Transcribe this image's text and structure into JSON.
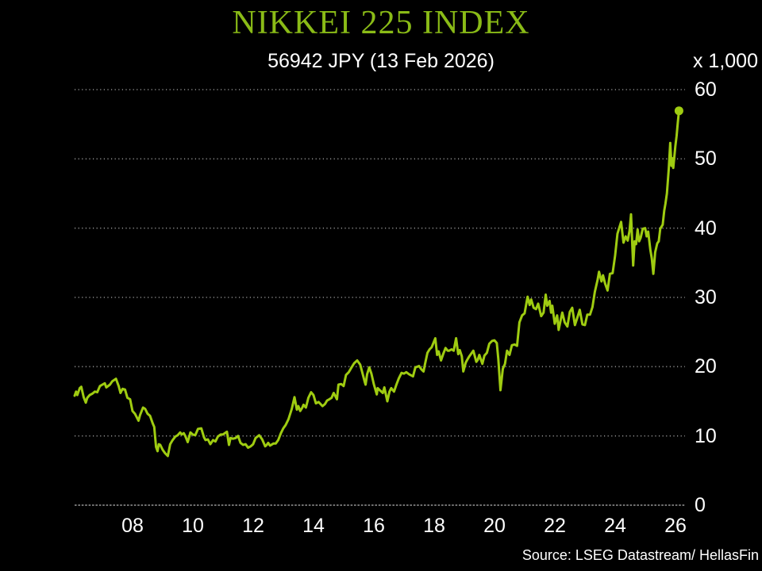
{
  "header": {
    "title": "NIKKEI 225 INDEX",
    "subtitle": "56942 JPY (13 Feb 2026)"
  },
  "footer": {
    "source_note": "Source: LSEG Datastream/ HellasFin"
  },
  "colors": {
    "background": "#000000",
    "title_green": "#8ABB17",
    "line_green": "#9FCC11",
    "gridline_gray": "#8A8A8A",
    "baseline_gray": "#959595",
    "text_white": "#FFFFFF"
  },
  "chart_data": {
    "type": "line",
    "title": "NIKKEI 225 INDEX",
    "annotation": "56942 JPY (13 Feb 2026)",
    "unit_label": "x 1,000",
    "xlabel": "",
    "ylabel": "",
    "legend_position": "none",
    "grid": "horizontal-dotted",
    "ylim": [
      0,
      60
    ],
    "yticks": [
      0,
      10,
      20,
      30,
      40,
      50,
      60
    ],
    "ytick_labels": [
      "0",
      "10",
      "20",
      "30",
      "40",
      "50",
      "60"
    ],
    "xlim": [
      2006.08,
      2026.32
    ],
    "xtick_years": [
      2008,
      2010,
      2012,
      2014,
      2016,
      2018,
      2020,
      2022,
      2024,
      2026
    ],
    "xtick_labels": [
      "08",
      "10",
      "12",
      "14",
      "16",
      "18",
      "20",
      "22",
      "24",
      "26"
    ],
    "values_unit": "JPY thousands",
    "last_point": {
      "date": "13 Feb 2026",
      "value_jpy": 56942
    },
    "series": [
      {
        "name": "Nikkei 225 Index",
        "points": [
          [
            2006.08,
            15.8
          ],
          [
            2006.13,
            16.4
          ],
          [
            2006.17,
            15.9
          ],
          [
            2006.25,
            16.9
          ],
          [
            2006.3,
            17.1
          ],
          [
            2006.38,
            15.6
          ],
          [
            2006.45,
            14.8
          ],
          [
            2006.5,
            15.5
          ],
          [
            2006.58,
            15.9
          ],
          [
            2006.67,
            16.1
          ],
          [
            2006.75,
            16.4
          ],
          [
            2006.83,
            16.3
          ],
          [
            2006.92,
            17.2
          ],
          [
            2007.0,
            17.4
          ],
          [
            2007.08,
            17.6
          ],
          [
            2007.13,
            17.0
          ],
          [
            2007.25,
            17.4
          ],
          [
            2007.33,
            17.9
          ],
          [
            2007.45,
            18.25
          ],
          [
            2007.54,
            17.2
          ],
          [
            2007.6,
            16.2
          ],
          [
            2007.67,
            16.8
          ],
          [
            2007.75,
            16.7
          ],
          [
            2007.83,
            15.5
          ],
          [
            2007.92,
            15.3
          ],
          [
            2008.0,
            13.6
          ],
          [
            2008.08,
            13.2
          ],
          [
            2008.2,
            12.2
          ],
          [
            2008.25,
            13.0
          ],
          [
            2008.35,
            14.1
          ],
          [
            2008.42,
            13.9
          ],
          [
            2008.5,
            13.2
          ],
          [
            2008.58,
            12.9
          ],
          [
            2008.67,
            11.8
          ],
          [
            2008.72,
            11.3
          ],
          [
            2008.78,
            8.4
          ],
          [
            2008.83,
            7.8
          ],
          [
            2008.87,
            8.8
          ],
          [
            2008.92,
            8.7
          ],
          [
            2009.0,
            8.0
          ],
          [
            2009.08,
            7.5
          ],
          [
            2009.17,
            7.1
          ],
          [
            2009.25,
            8.8
          ],
          [
            2009.33,
            9.4
          ],
          [
            2009.42,
            9.9
          ],
          [
            2009.5,
            10.1
          ],
          [
            2009.58,
            10.5
          ],
          [
            2009.63,
            10.2
          ],
          [
            2009.7,
            10.4
          ],
          [
            2009.75,
            10.0
          ],
          [
            2009.83,
            9.1
          ],
          [
            2009.92,
            10.5
          ],
          [
            2010.0,
            10.2
          ],
          [
            2010.08,
            10.1
          ],
          [
            2010.17,
            11.0
          ],
          [
            2010.28,
            11.1
          ],
          [
            2010.37,
            9.8
          ],
          [
            2010.42,
            9.4
          ],
          [
            2010.5,
            9.5
          ],
          [
            2010.58,
            8.8
          ],
          [
            2010.67,
            9.4
          ],
          [
            2010.75,
            9.2
          ],
          [
            2010.83,
            9.9
          ],
          [
            2010.92,
            10.2
          ],
          [
            2011.0,
            10.2
          ],
          [
            2011.13,
            10.6
          ],
          [
            2011.2,
            8.7
          ],
          [
            2011.25,
            9.7
          ],
          [
            2011.33,
            9.6
          ],
          [
            2011.42,
            9.7
          ],
          [
            2011.5,
            10.0
          ],
          [
            2011.58,
            9.0
          ],
          [
            2011.67,
            8.7
          ],
          [
            2011.75,
            8.8
          ],
          [
            2011.83,
            8.3
          ],
          [
            2011.92,
            8.5
          ],
          [
            2012.0,
            8.8
          ],
          [
            2012.08,
            9.7
          ],
          [
            2012.2,
            10.1
          ],
          [
            2012.3,
            9.5
          ],
          [
            2012.4,
            8.5
          ],
          [
            2012.45,
            8.7
          ],
          [
            2012.5,
            9.0
          ],
          [
            2012.56,
            8.6
          ],
          [
            2012.67,
            8.9
          ],
          [
            2012.75,
            8.9
          ],
          [
            2012.83,
            9.4
          ],
          [
            2012.92,
            10.4
          ],
          [
            2013.0,
            11.1
          ],
          [
            2013.08,
            11.6
          ],
          [
            2013.17,
            12.4
          ],
          [
            2013.28,
            13.9
          ],
          [
            2013.37,
            15.6
          ],
          [
            2013.45,
            13.8
          ],
          [
            2013.5,
            14.3
          ],
          [
            2013.56,
            13.6
          ],
          [
            2013.63,
            14.1
          ],
          [
            2013.67,
            14.5
          ],
          [
            2013.75,
            14.1
          ],
          [
            2013.83,
            15.5
          ],
          [
            2013.92,
            16.3
          ],
          [
            2014.0,
            15.9
          ],
          [
            2014.08,
            14.7
          ],
          [
            2014.17,
            14.9
          ],
          [
            2014.3,
            14.3
          ],
          [
            2014.38,
            14.6
          ],
          [
            2014.45,
            15.1
          ],
          [
            2014.53,
            15.3
          ],
          [
            2014.6,
            15.5
          ],
          [
            2014.67,
            16.2
          ],
          [
            2014.78,
            15.3
          ],
          [
            2014.83,
            17.4
          ],
          [
            2014.92,
            17.5
          ],
          [
            2015.0,
            17.2
          ],
          [
            2015.08,
            18.8
          ],
          [
            2015.17,
            19.2
          ],
          [
            2015.25,
            19.8
          ],
          [
            2015.35,
            20.5
          ],
          [
            2015.45,
            20.9
          ],
          [
            2015.55,
            20.3
          ],
          [
            2015.63,
            19.0
          ],
          [
            2015.7,
            17.8
          ],
          [
            2015.73,
            17.4
          ],
          [
            2015.78,
            18.9
          ],
          [
            2015.85,
            19.9
          ],
          [
            2015.92,
            19.0
          ],
          [
            2016.0,
            17.5
          ],
          [
            2016.1,
            16.0
          ],
          [
            2016.13,
            16.9
          ],
          [
            2016.2,
            16.6
          ],
          [
            2016.3,
            16.2
          ],
          [
            2016.35,
            17.0
          ],
          [
            2016.45,
            15.0
          ],
          [
            2016.52,
            16.4
          ],
          [
            2016.58,
            16.9
          ],
          [
            2016.67,
            16.4
          ],
          [
            2016.75,
            17.4
          ],
          [
            2016.83,
            18.3
          ],
          [
            2016.92,
            19.1
          ],
          [
            2017.0,
            19.0
          ],
          [
            2017.08,
            19.2
          ],
          [
            2017.17,
            18.9
          ],
          [
            2017.3,
            18.6
          ],
          [
            2017.38,
            19.9
          ],
          [
            2017.45,
            20.0
          ],
          [
            2017.5,
            20.1
          ],
          [
            2017.58,
            19.6
          ],
          [
            2017.65,
            19.3
          ],
          [
            2017.7,
            20.4
          ],
          [
            2017.78,
            22.0
          ],
          [
            2017.85,
            22.5
          ],
          [
            2017.92,
            22.8
          ],
          [
            2018.04,
            24.1
          ],
          [
            2018.1,
            21.7
          ],
          [
            2018.15,
            22.2
          ],
          [
            2018.23,
            20.9
          ],
          [
            2018.3,
            21.8
          ],
          [
            2018.38,
            22.7
          ],
          [
            2018.45,
            22.3
          ],
          [
            2018.5,
            22.3
          ],
          [
            2018.58,
            22.5
          ],
          [
            2018.65,
            22.3
          ],
          [
            2018.73,
            24.1
          ],
          [
            2018.8,
            21.8
          ],
          [
            2018.85,
            22.4
          ],
          [
            2018.92,
            21.5
          ],
          [
            2018.97,
            19.3
          ],
          [
            2019.05,
            20.6
          ],
          [
            2019.1,
            21.0
          ],
          [
            2019.17,
            21.5
          ],
          [
            2019.3,
            22.3
          ],
          [
            2019.4,
            20.7
          ],
          [
            2019.45,
            21.0
          ],
          [
            2019.5,
            21.7
          ],
          [
            2019.6,
            20.4
          ],
          [
            2019.67,
            21.6
          ],
          [
            2019.75,
            22.0
          ],
          [
            2019.83,
            23.3
          ],
          [
            2019.92,
            23.7
          ],
          [
            2020.0,
            23.8
          ],
          [
            2020.08,
            23.4
          ],
          [
            2020.13,
            21.1
          ],
          [
            2020.2,
            16.6
          ],
          [
            2020.28,
            19.7
          ],
          [
            2020.35,
            20.4
          ],
          [
            2020.42,
            22.3
          ],
          [
            2020.5,
            21.7
          ],
          [
            2020.58,
            23.1
          ],
          [
            2020.67,
            23.2
          ],
          [
            2020.75,
            23.0
          ],
          [
            2020.83,
            26.4
          ],
          [
            2020.92,
            27.4
          ],
          [
            2021.0,
            27.7
          ],
          [
            2021.1,
            30.1
          ],
          [
            2021.17,
            28.9
          ],
          [
            2021.22,
            29.7
          ],
          [
            2021.3,
            28.5
          ],
          [
            2021.38,
            28.3
          ],
          [
            2021.45,
            29.1
          ],
          [
            2021.55,
            27.3
          ],
          [
            2021.63,
            27.8
          ],
          [
            2021.7,
            30.4
          ],
          [
            2021.75,
            28.8
          ],
          [
            2021.83,
            29.5
          ],
          [
            2021.88,
            27.8
          ],
          [
            2021.92,
            28.8
          ],
          [
            2022.0,
            26.2
          ],
          [
            2022.08,
            27.4
          ],
          [
            2022.13,
            25.3
          ],
          [
            2022.2,
            26.8
          ],
          [
            2022.25,
            27.8
          ],
          [
            2022.33,
            26.4
          ],
          [
            2022.42,
            25.8
          ],
          [
            2022.5,
            27.9
          ],
          [
            2022.58,
            28.5
          ],
          [
            2022.67,
            26.0
          ],
          [
            2022.75,
            27.1
          ],
          [
            2022.83,
            28.2
          ],
          [
            2022.92,
            26.1
          ],
          [
            2023.0,
            26.0
          ],
          [
            2023.08,
            27.5
          ],
          [
            2023.17,
            27.5
          ],
          [
            2023.25,
            28.6
          ],
          [
            2023.33,
            30.8
          ],
          [
            2023.42,
            32.5
          ],
          [
            2023.47,
            33.7
          ],
          [
            2023.55,
            32.3
          ],
          [
            2023.6,
            33.2
          ],
          [
            2023.67,
            32.0
          ],
          [
            2023.75,
            31.0
          ],
          [
            2023.83,
            33.4
          ],
          [
            2023.92,
            33.5
          ],
          [
            2024.0,
            36.0
          ],
          [
            2024.08,
            39.2
          ],
          [
            2024.2,
            40.9
          ],
          [
            2024.28,
            37.9
          ],
          [
            2024.35,
            38.8
          ],
          [
            2024.42,
            38.2
          ],
          [
            2024.48,
            39.6
          ],
          [
            2024.53,
            42.0
          ],
          [
            2024.6,
            34.6
          ],
          [
            2024.65,
            38.1
          ],
          [
            2024.7,
            37.7
          ],
          [
            2024.75,
            39.8
          ],
          [
            2024.8,
            38.1
          ],
          [
            2024.85,
            38.6
          ],
          [
            2024.92,
            39.9
          ],
          [
            2025.0,
            40.0
          ],
          [
            2025.05,
            38.8
          ],
          [
            2025.1,
            39.5
          ],
          [
            2025.17,
            36.9
          ],
          [
            2025.22,
            35.6
          ],
          [
            2025.27,
            33.4
          ],
          [
            2025.33,
            36.5
          ],
          [
            2025.4,
            37.8
          ],
          [
            2025.45,
            38.1
          ],
          [
            2025.5,
            39.9
          ],
          [
            2025.58,
            40.5
          ],
          [
            2025.63,
            42.5
          ],
          [
            2025.67,
            43.5
          ],
          [
            2025.72,
            45.0
          ],
          [
            2025.78,
            48.5
          ],
          [
            2025.83,
            52.3
          ],
          [
            2025.87,
            49.0
          ],
          [
            2025.9,
            50.1
          ],
          [
            2025.93,
            48.7
          ],
          [
            2026.0,
            51.8
          ],
          [
            2026.04,
            53.3
          ],
          [
            2026.08,
            55.2
          ],
          [
            2026.12,
            56.94
          ]
        ]
      }
    ]
  }
}
